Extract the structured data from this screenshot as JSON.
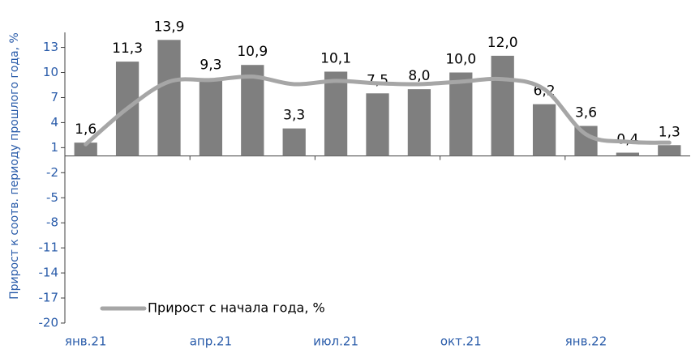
{
  "chart_data": {
    "type": "bar",
    "y_label": "Прирост к соотв. периоду прошлого года, %",
    "categories": [
      "янв.21",
      null,
      null,
      "апр.21",
      null,
      null,
      "июл.21",
      null,
      null,
      "окт.21",
      null,
      null,
      "янв.22",
      null,
      null
    ],
    "series": [
      {
        "type": "bar",
        "color": "#7f7f7f",
        "values": [
          1.6,
          11.3,
          13.9,
          9.3,
          10.9,
          3.3,
          10.1,
          7.5,
          8.0,
          10.0,
          12.0,
          6.2,
          3.6,
          0.4,
          1.3
        ],
        "value_labels": [
          "1,6",
          "11,3",
          "13,9",
          "9,3",
          "10,9",
          "3,3",
          "10,1",
          "7,5",
          "8,0",
          "10,0",
          "12,0",
          "6,2",
          "3,6",
          "0,4",
          "1,3"
        ]
      },
      {
        "type": "line",
        "name": "Прирост с начала года, %",
        "color": "#a6a6a6",
        "values": [
          1.4,
          5.7,
          8.9,
          9.1,
          9.5,
          8.6,
          9.0,
          8.7,
          8.6,
          8.9,
          9.2,
          8.0,
          2.6,
          1.7,
          1.6
        ]
      }
    ],
    "ylim": [
      -20,
      14.8
    ],
    "yticks": [
      13,
      10,
      7,
      4,
      1,
      -2,
      -5,
      -8,
      -11,
      -14,
      -17,
      -20
    ],
    "legend": "lower left"
  }
}
